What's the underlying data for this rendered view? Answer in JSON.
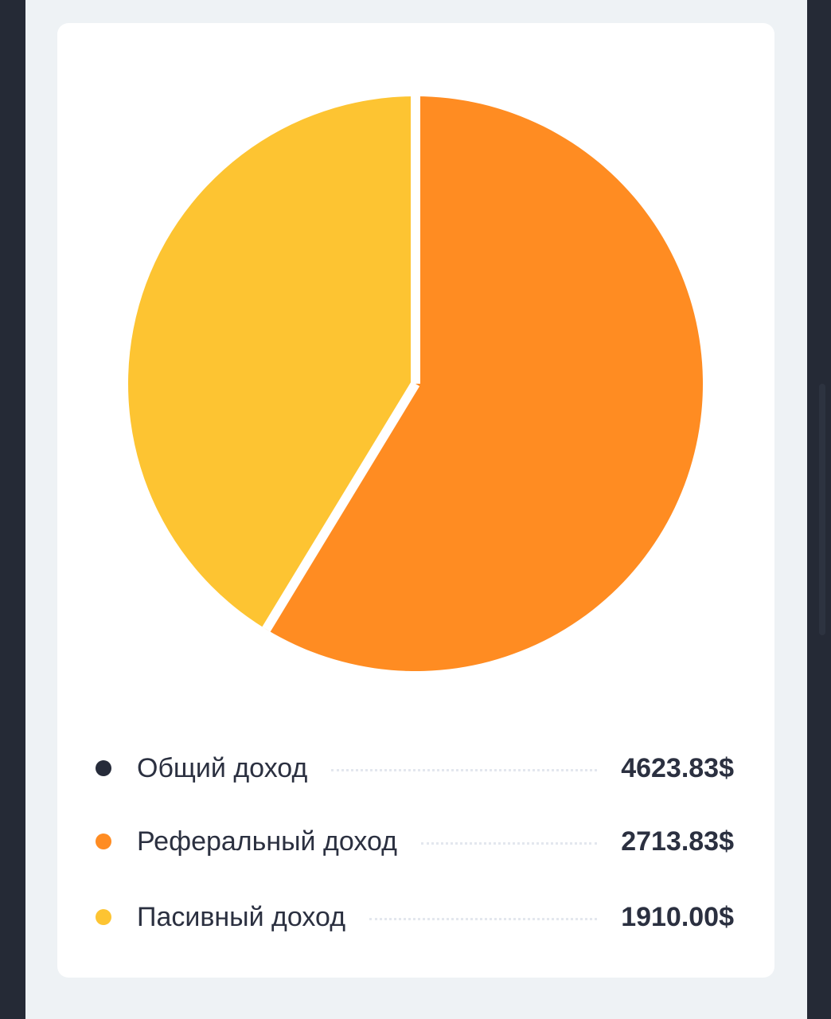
{
  "chart_data": {
    "type": "pie",
    "slices": [
      {
        "name": "Реферальный доход",
        "value": 2713.83,
        "color": "#ff8c22"
      },
      {
        "name": "Пасивный доход",
        "value": 1910.0,
        "color": "#fdc432"
      }
    ]
  },
  "legend": [
    {
      "label": "Общий доход",
      "value": "4623.83$",
      "color": "#262b3a"
    },
    {
      "label": "Реферальный доход",
      "value": "2713.83$",
      "color": "#ff8c22"
    },
    {
      "label": "Пасивный доход",
      "value": "1910.00$",
      "color": "#fdc432"
    }
  ]
}
